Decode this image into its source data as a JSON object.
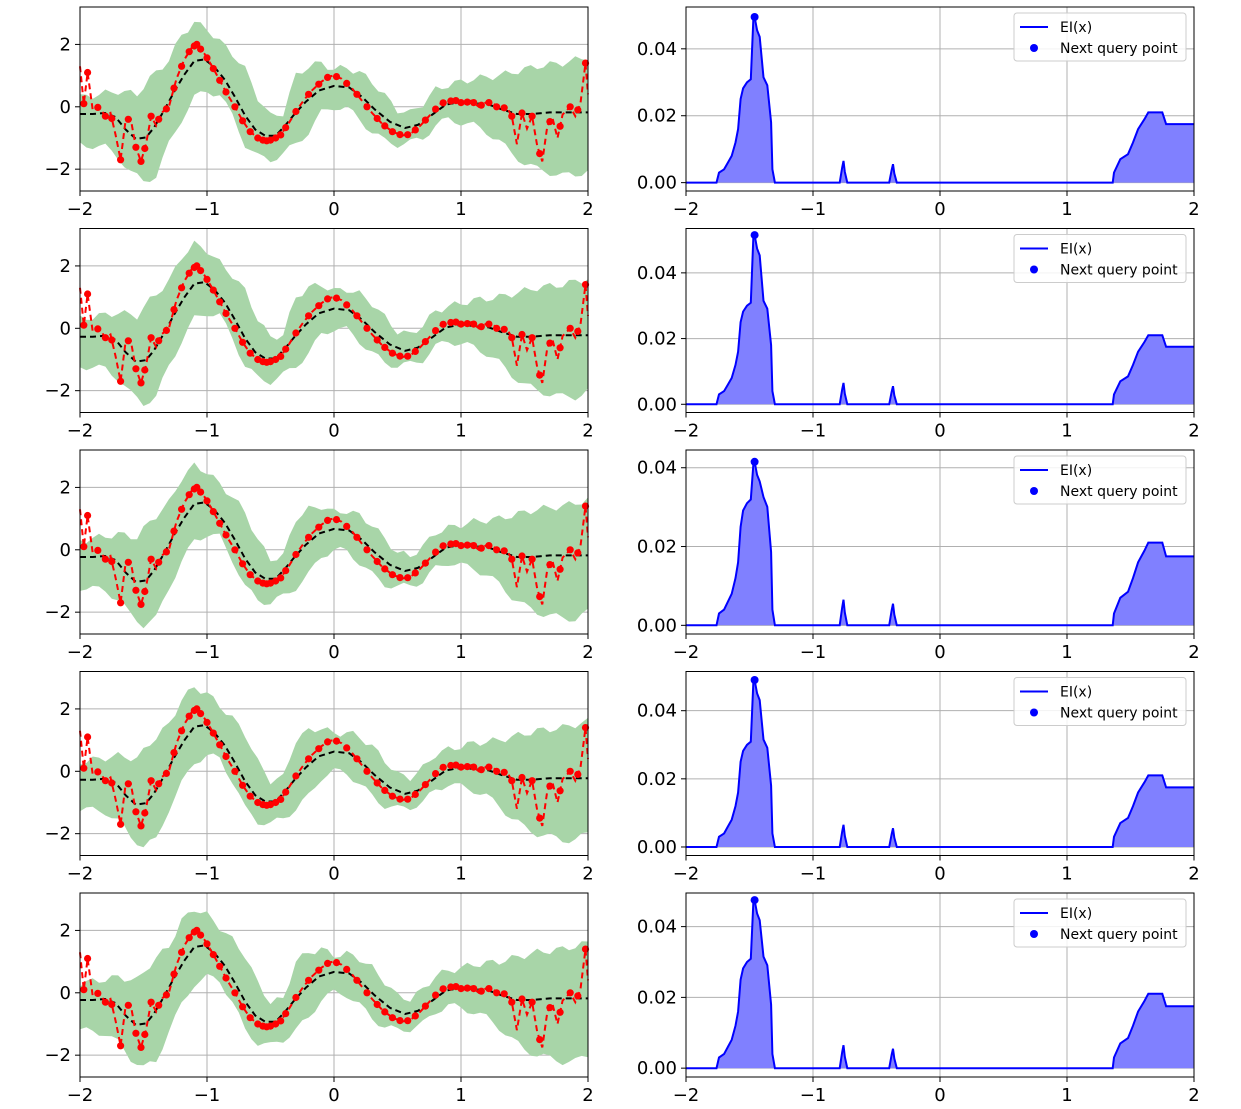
{
  "figure": {
    "rows": 5,
    "colors": {
      "gp_band": "#a8d5a8",
      "gp_mean": "#000000",
      "truth_line": "#ff0000",
      "observations": "#ff0000",
      "ei_line": "#0000ff",
      "ei_fill": "#8080ff",
      "next_point": "#0000ff",
      "grid": "#b0b0b0"
    }
  },
  "chart_data": [
    {
      "type": "line",
      "panel": "gp-posterior-1",
      "xlim": [
        -2,
        2
      ],
      "ylim": [
        -2.7,
        3.2
      ],
      "xticks": [
        -2,
        -1,
        0,
        1,
        2
      ],
      "yticks": [
        -2,
        0,
        2
      ],
      "grid": true
    },
    {
      "type": "area",
      "panel": "expected-improvement-1",
      "xlim": [
        -2,
        2
      ],
      "ylim": [
        -0.0025,
        0.0525
      ],
      "xticks": [
        -2,
        -1,
        0,
        1,
        2
      ],
      "yticks": [
        0.0,
        0.02,
        0.04
      ],
      "ytick_labels": [
        "0.00",
        "0.02",
        "0.04"
      ],
      "grid": true,
      "legend_position": "upper-right",
      "legend": [
        "EI(x)",
        "Next query point"
      ],
      "peak": {
        "x": -1.46,
        "y": 0.0495
      },
      "pre_height": 0.03
    },
    {
      "type": "line",
      "panel": "gp-posterior-2",
      "xlim": [
        -2,
        2
      ],
      "ylim": [
        -2.7,
        3.2
      ],
      "xticks": [
        -2,
        -1,
        0,
        1,
        2
      ],
      "yticks": [
        -2,
        0,
        2
      ],
      "grid": true
    },
    {
      "type": "area",
      "panel": "expected-improvement-2",
      "xlim": [
        -2,
        2
      ],
      "ylim": [
        -0.0025,
        0.0535
      ],
      "xticks": [
        -2,
        -1,
        0,
        1,
        2
      ],
      "yticks": [
        0.0,
        0.02,
        0.04
      ],
      "ytick_labels": [
        "0.00",
        "0.02",
        "0.04"
      ],
      "grid": true,
      "legend_position": "upper-right",
      "legend": [
        "EI(x)",
        "Next query point"
      ],
      "peak": {
        "x": -1.46,
        "y": 0.0515
      },
      "pre_height": 0.03
    },
    {
      "type": "line",
      "panel": "gp-posterior-3",
      "xlim": [
        -2,
        2
      ],
      "ylim": [
        -2.7,
        3.2
      ],
      "xticks": [
        -2,
        -1,
        0,
        1,
        2
      ],
      "yticks": [
        -2,
        0,
        2
      ],
      "grid": true
    },
    {
      "type": "area",
      "panel": "expected-improvement-3",
      "xlim": [
        -2,
        2
      ],
      "ylim": [
        -0.0022,
        0.0445
      ],
      "xticks": [
        -2,
        -1,
        0,
        1,
        2
      ],
      "yticks": [
        0.0,
        0.02,
        0.04
      ],
      "ytick_labels": [
        "0.00",
        "0.02",
        "0.04"
      ],
      "grid": true,
      "legend_position": "upper-right",
      "legend": [
        "EI(x)",
        "Next query point"
      ],
      "peak": {
        "x": -1.46,
        "y": 0.0415
      },
      "pre_height": 0.031
    },
    {
      "type": "line",
      "panel": "gp-posterior-4",
      "xlim": [
        -2,
        2
      ],
      "ylim": [
        -2.7,
        3.2
      ],
      "xticks": [
        -2,
        -1,
        0,
        1,
        2
      ],
      "yticks": [
        -2,
        0,
        2
      ],
      "grid": true
    },
    {
      "type": "area",
      "panel": "expected-improvement-4",
      "xlim": [
        -2,
        2
      ],
      "ylim": [
        -0.0025,
        0.0515
      ],
      "xticks": [
        -2,
        -1,
        0,
        1,
        2
      ],
      "yticks": [
        0.0,
        0.02,
        0.04
      ],
      "ytick_labels": [
        "0.00",
        "0.02",
        "0.04"
      ],
      "grid": true,
      "legend_position": "upper-right",
      "legend": [
        "EI(x)",
        "Next query point"
      ],
      "peak": {
        "x": -1.46,
        "y": 0.049
      },
      "pre_height": 0.03
    },
    {
      "type": "line",
      "panel": "gp-posterior-5",
      "xlim": [
        -2,
        2
      ],
      "ylim": [
        -2.7,
        3.2
      ],
      "xticks": [
        -2,
        -1,
        0,
        1,
        2
      ],
      "yticks": [
        -2,
        0,
        2
      ],
      "grid": true
    },
    {
      "type": "area",
      "panel": "expected-improvement-5",
      "xlim": [
        -2,
        2
      ],
      "ylim": [
        -0.0025,
        0.0495
      ],
      "xticks": [
        -2,
        -1,
        0,
        1,
        2
      ],
      "yticks": [
        0.0,
        0.02,
        0.04
      ],
      "ytick_labels": [
        "0.00",
        "0.02",
        "0.04"
      ],
      "grid": true,
      "legend_position": "upper-right",
      "legend": [
        "EI(x)",
        "Next query point"
      ],
      "peak": {
        "x": -1.46,
        "y": 0.0475
      },
      "pre_height": 0.03
    }
  ],
  "gp_model": {
    "truth_curve": [
      [
        -2,
        1.3
      ],
      [
        -1.97,
        0.1
      ],
      [
        -1.94,
        1.1
      ],
      [
        -1.9,
        -0.1
      ],
      [
        -1.85,
        0.0
      ],
      [
        -1.8,
        -0.3
      ],
      [
        -1.76,
        -0.2
      ],
      [
        -1.72,
        -0.9
      ],
      [
        -1.68,
        -1.7
      ],
      [
        -1.64,
        -0.4
      ],
      [
        -1.6,
        -0.4
      ],
      [
        -1.56,
        -1.3
      ],
      [
        -1.52,
        -1.75
      ],
      [
        -1.48,
        -1.2
      ],
      [
        -1.44,
        -0.3
      ],
      [
        -1.4,
        -0.6
      ],
      [
        -1.36,
        -0.2
      ],
      [
        -1.3,
        0.0
      ],
      [
        -1.24,
        0.9
      ],
      [
        -1.18,
        1.5
      ],
      [
        -1.12,
        1.9
      ],
      [
        -1.08,
        2.0
      ],
      [
        -1.02,
        1.7
      ],
      [
        -0.96,
        1.3
      ],
      [
        -0.9,
        0.85
      ],
      [
        -0.84,
        0.4
      ],
      [
        -0.78,
        0.0
      ],
      [
        -0.72,
        -0.45
      ],
      [
        -0.66,
        -0.8
      ],
      [
        -0.6,
        -1.0
      ],
      [
        -0.54,
        -1.1
      ],
      [
        -0.48,
        -1.05
      ],
      [
        -0.42,
        -0.9
      ],
      [
        -0.36,
        -0.55
      ],
      [
        -0.3,
        -0.15
      ],
      [
        -0.24,
        0.2
      ],
      [
        -0.18,
        0.5
      ],
      [
        -0.1,
        0.8
      ],
      [
        -0.04,
        0.97
      ],
      [
        0.0,
        1.0
      ],
      [
        0.06,
        0.9
      ],
      [
        0.14,
        0.6
      ],
      [
        0.22,
        0.2
      ],
      [
        0.3,
        -0.2
      ],
      [
        0.38,
        -0.55
      ],
      [
        0.46,
        -0.8
      ],
      [
        0.54,
        -0.92
      ],
      [
        0.6,
        -0.88
      ],
      [
        0.68,
        -0.6
      ],
      [
        0.76,
        -0.25
      ],
      [
        0.84,
        0.1
      ],
      [
        0.9,
        0.18
      ],
      [
        0.96,
        0.2
      ],
      [
        1.02,
        0.1
      ],
      [
        1.08,
        0.2
      ],
      [
        1.14,
        0.0
      ],
      [
        1.2,
        0.15
      ],
      [
        1.26,
        0.1
      ],
      [
        1.3,
        -0.1
      ],
      [
        1.36,
        0.0
      ],
      [
        1.4,
        -0.3
      ],
      [
        1.44,
        -1.2
      ],
      [
        1.48,
        -0.2
      ],
      [
        1.52,
        -0.7
      ],
      [
        1.56,
        -0.3
      ],
      [
        1.6,
        -1.25
      ],
      [
        1.64,
        -1.75
      ],
      [
        1.68,
        -0.6
      ],
      [
        1.72,
        -0.35
      ],
      [
        1.76,
        -1.0
      ],
      [
        1.8,
        -0.25
      ],
      [
        1.86,
        0.0
      ],
      [
        1.9,
        -0.3
      ],
      [
        1.94,
        0.1
      ],
      [
        1.98,
        1.4
      ],
      [
        2.0,
        0.4
      ]
    ],
    "mean_curve": [
      [
        -2,
        -0.25
      ],
      [
        -1.9,
        -0.25
      ],
      [
        -1.8,
        -0.22
      ],
      [
        -1.72,
        -0.35
      ],
      [
        -1.64,
        -0.75
      ],
      [
        -1.56,
        -1.05
      ],
      [
        -1.48,
        -1.0
      ],
      [
        -1.42,
        -0.7
      ],
      [
        -1.34,
        -0.15
      ],
      [
        -1.26,
        0.45
      ],
      [
        -1.18,
        1.0
      ],
      [
        -1.1,
        1.45
      ],
      [
        -1.02,
        1.5
      ],
      [
        -0.94,
        1.25
      ],
      [
        -0.86,
        0.85
      ],
      [
        -0.78,
        0.3
      ],
      [
        -0.7,
        -0.3
      ],
      [
        -0.62,
        -0.75
      ],
      [
        -0.54,
        -0.95
      ],
      [
        -0.46,
        -0.95
      ],
      [
        -0.38,
        -0.6
      ],
      [
        -0.3,
        -0.2
      ],
      [
        -0.22,
        0.15
      ],
      [
        -0.12,
        0.5
      ],
      [
        0.0,
        0.65
      ],
      [
        0.12,
        0.6
      ],
      [
        0.22,
        0.3
      ],
      [
        0.32,
        -0.1
      ],
      [
        0.44,
        -0.5
      ],
      [
        0.56,
        -0.7
      ],
      [
        0.66,
        -0.6
      ],
      [
        0.78,
        -0.25
      ],
      [
        0.88,
        0.05
      ],
      [
        0.98,
        0.12
      ],
      [
        1.1,
        0.1
      ],
      [
        1.22,
        0.05
      ],
      [
        1.32,
        -0.1
      ],
      [
        1.44,
        -0.25
      ],
      [
        1.56,
        -0.25
      ],
      [
        1.7,
        -0.2
      ],
      [
        1.85,
        -0.2
      ],
      [
        2.0,
        -0.2
      ]
    ],
    "band_upper": [
      [
        -2,
        0.3
      ],
      [
        -1.7,
        0.5
      ],
      [
        -1.55,
        0.4
      ],
      [
        -1.45,
        0.9
      ],
      [
        -1.3,
        1.5
      ],
      [
        -1.2,
        2.3
      ],
      [
        -1.1,
        2.7
      ],
      [
        -1.0,
        2.5
      ],
      [
        -0.9,
        2.1
      ],
      [
        -0.8,
        1.7
      ],
      [
        -0.7,
        1.2
      ],
      [
        -0.6,
        0.3
      ],
      [
        -0.5,
        -0.3
      ],
      [
        -0.4,
        -0.2
      ],
      [
        -0.3,
        1.0
      ],
      [
        -0.2,
        1.3
      ],
      [
        -0.1,
        1.4
      ],
      [
        0.0,
        1.2
      ],
      [
        0.1,
        1.25
      ],
      [
        0.2,
        1.1
      ],
      [
        0.3,
        0.8
      ],
      [
        0.4,
        0.35
      ],
      [
        0.5,
        -0.1
      ],
      [
        0.6,
        -0.2
      ],
      [
        0.7,
        0.1
      ],
      [
        0.8,
        0.55
      ],
      [
        0.9,
        0.7
      ],
      [
        1.0,
        0.8
      ],
      [
        1.1,
        0.9
      ],
      [
        1.2,
        0.95
      ],
      [
        1.3,
        1.0
      ],
      [
        1.4,
        1.1
      ],
      [
        1.5,
        1.2
      ],
      [
        1.6,
        1.3
      ],
      [
        1.7,
        1.35
      ],
      [
        1.8,
        1.4
      ],
      [
        1.9,
        1.5
      ],
      [
        2.0,
        1.6
      ]
    ],
    "band_lower": [
      [
        -2,
        -1.2
      ],
      [
        -1.8,
        -1.3
      ],
      [
        -1.7,
        -1.6
      ],
      [
        -1.6,
        -2.1
      ],
      [
        -1.5,
        -2.4
      ],
      [
        -1.4,
        -2.2
      ],
      [
        -1.3,
        -1.2
      ],
      [
        -1.2,
        -0.4
      ],
      [
        -1.1,
        0.3
      ],
      [
        -1.0,
        0.5
      ],
      [
        -0.9,
        0.4
      ],
      [
        -0.8,
        -0.3
      ],
      [
        -0.7,
        -1.2
      ],
      [
        -0.6,
        -1.6
      ],
      [
        -0.5,
        -1.7
      ],
      [
        -0.4,
        -1.5
      ],
      [
        -0.3,
        -1.2
      ],
      [
        -0.2,
        -0.8
      ],
      [
        -0.1,
        -0.2
      ],
      [
        0.0,
        0.0
      ],
      [
        0.1,
        -0.05
      ],
      [
        0.2,
        -0.4
      ],
      [
        0.3,
        -0.8
      ],
      [
        0.4,
        -1.1
      ],
      [
        0.5,
        -1.2
      ],
      [
        0.6,
        -1.15
      ],
      [
        0.7,
        -1.0
      ],
      [
        0.8,
        -0.6
      ],
      [
        0.9,
        -0.4
      ],
      [
        1.0,
        -0.5
      ],
      [
        1.1,
        -0.6
      ],
      [
        1.2,
        -0.8
      ],
      [
        1.3,
        -1.1
      ],
      [
        1.4,
        -1.5
      ],
      [
        1.5,
        -1.8
      ],
      [
        1.6,
        -2.0
      ],
      [
        1.7,
        -2.1
      ],
      [
        1.8,
        -2.2
      ],
      [
        1.9,
        -2.2
      ],
      [
        2.0,
        -2.0
      ]
    ],
    "observed_x": [
      -1.97,
      -1.94,
      -1.86,
      -1.8,
      -1.75,
      -1.68,
      -1.62,
      -1.56,
      -1.52,
      -1.49,
      -1.44,
      -1.38,
      -1.32,
      -1.26,
      -1.2,
      -1.14,
      -1.1,
      -1.08,
      -1.05,
      -1.0,
      -0.95,
      -0.9,
      -0.85,
      -0.78,
      -0.72,
      -0.66,
      -0.6,
      -0.56,
      -0.53,
      -0.5,
      -0.46,
      -0.42,
      -0.38,
      -0.3,
      -0.2,
      -0.12,
      -0.05,
      0.02,
      0.1,
      0.18,
      0.26,
      0.34,
      0.4,
      0.46,
      0.52,
      0.58,
      0.64,
      0.72,
      0.8,
      0.86,
      0.92,
      0.96,
      1.0,
      1.05,
      1.1,
      1.16,
      1.22,
      1.28,
      1.34,
      1.4,
      1.48,
      1.56,
      1.62,
      1.7,
      1.78,
      1.86,
      1.92,
      1.98
    ]
  },
  "ei_model": {
    "bump_group_start": -1.76,
    "bump_group_peak_end": -1.33,
    "bump_group_end": -1.3,
    "small_bumps": [
      {
        "x": -0.76,
        "y": 0.0065
      },
      {
        "x": -0.37,
        "y": 0.0055
      }
    ],
    "right_steps": [
      [
        1.36,
        0.0
      ],
      [
        1.37,
        0.003
      ],
      [
        1.42,
        0.007
      ],
      [
        1.48,
        0.0085
      ],
      [
        1.52,
        0.012
      ],
      [
        1.56,
        0.016
      ],
      [
        1.61,
        0.019
      ],
      [
        1.64,
        0.021
      ],
      [
        1.75,
        0.021
      ],
      [
        1.78,
        0.0175
      ],
      [
        2.0,
        0.0175
      ]
    ]
  }
}
